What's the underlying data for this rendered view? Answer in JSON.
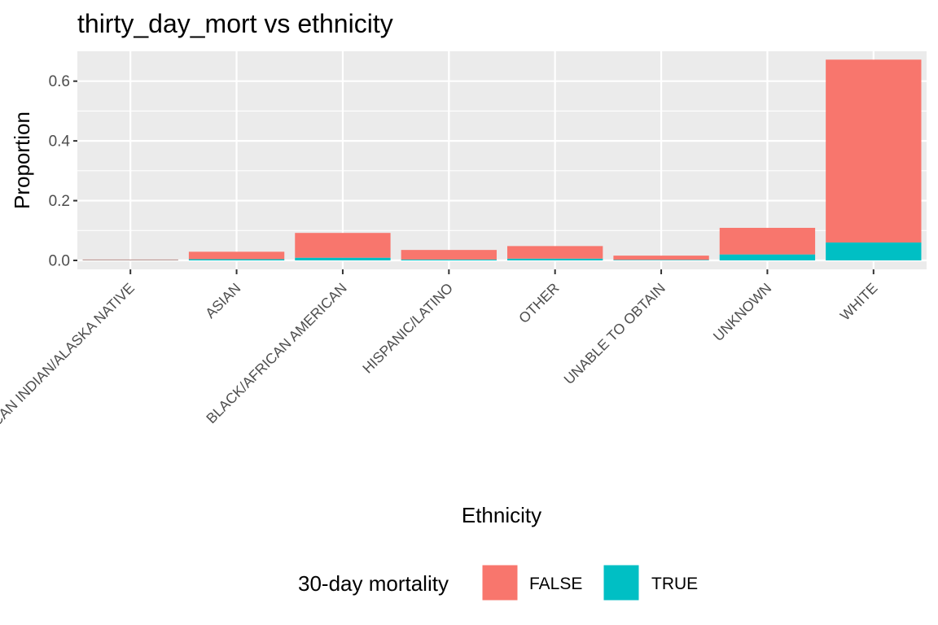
{
  "chart_data": {
    "type": "bar",
    "stacked": true,
    "title": "thirty_day_mort vs ethnicity",
    "xlabel": "Ethnicity",
    "ylabel": "Proportion",
    "categories": [
      "AMERICAN INDIAN/ALASKA NATIVE",
      "ASIAN",
      "BLACK/AFRICAN AMERICAN",
      "HISPANIC/LATINO",
      "OTHER",
      "UNABLE TO OBTAIN",
      "UNKNOWN",
      "WHITE"
    ],
    "series": [
      {
        "name": "FALSE",
        "color": "#F8766D",
        "values": [
          0.002,
          0.025,
          0.083,
          0.032,
          0.042,
          0.014,
          0.089,
          0.612
        ]
      },
      {
        "name": "TRUE",
        "color": "#00BFC4",
        "values": [
          0.001,
          0.004,
          0.009,
          0.003,
          0.006,
          0.002,
          0.02,
          0.06
        ]
      }
    ],
    "ylim": [
      -0.03,
      0.7
    ],
    "yticks": [
      0.0,
      0.2,
      0.4,
      0.6
    ],
    "ytick_labels": [
      "0.0",
      "0.2",
      "0.4",
      "0.6"
    ],
    "grid": true,
    "panel_background": "#EBEBEB",
    "legend": {
      "title": "30-day mortality",
      "position": "bottom",
      "entries": [
        "FALSE",
        "TRUE"
      ]
    }
  }
}
